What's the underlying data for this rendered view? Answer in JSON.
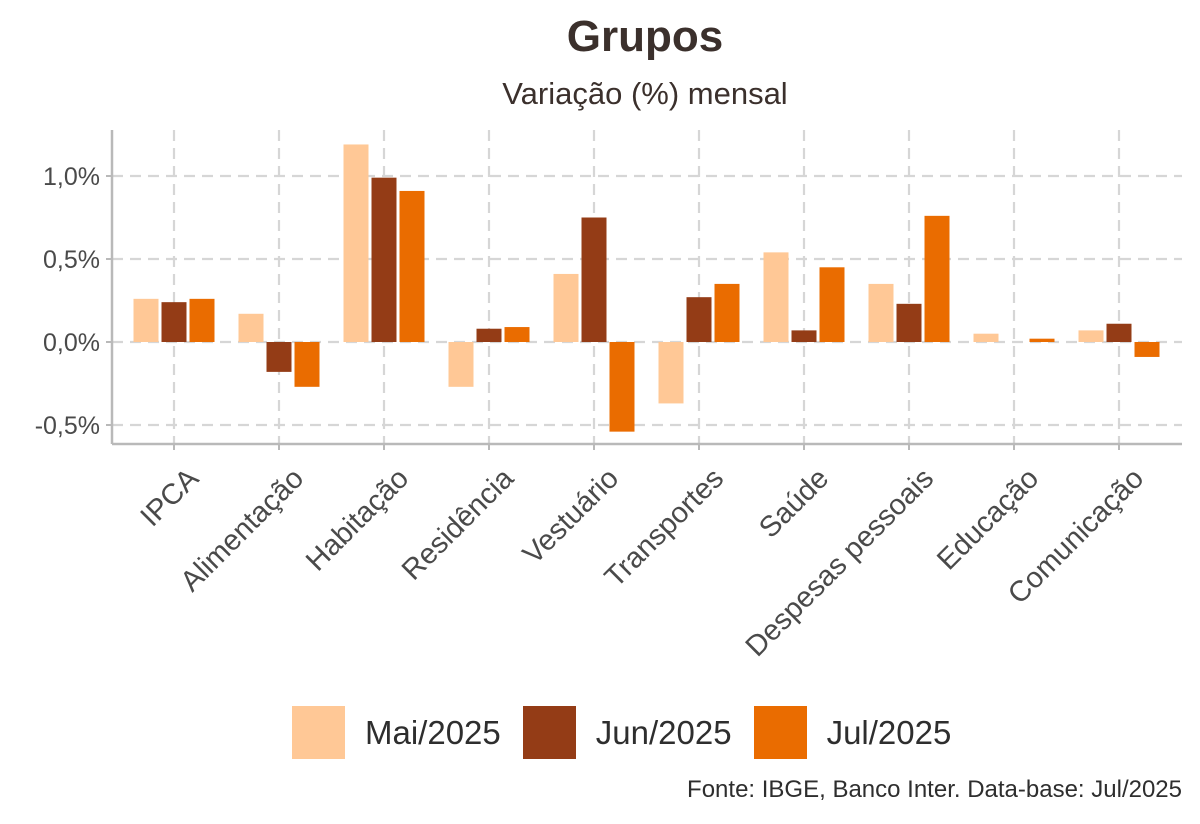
{
  "title": "Grupos",
  "subtitle": "Variação (%) mensal",
  "source": "Fonte: IBGE, Banco Inter. Data-base: Jul/2025",
  "chart_data": {
    "type": "bar",
    "title": "Grupos",
    "subtitle": "Variação (%) mensal",
    "xlabel": "",
    "ylabel": "",
    "categories": [
      "IPCA",
      "Alimentação",
      "Habitação",
      "Residência",
      "Vestuário",
      "Transportes",
      "Saúde",
      "Despesas pessoais",
      "Educação",
      "Comunicação"
    ],
    "series": [
      {
        "name": "Mai/2025",
        "color": "#ffc896",
        "values": [
          0.26,
          0.17,
          1.19,
          -0.27,
          0.41,
          -0.37,
          0.54,
          0.35,
          0.05,
          0.07
        ]
      },
      {
        "name": "Jun/2025",
        "color": "#943c16",
        "values": [
          0.24,
          -0.18,
          0.99,
          0.08,
          0.75,
          0.27,
          0.07,
          0.23,
          0.0,
          0.11
        ]
      },
      {
        "name": "Jul/2025",
        "color": "#ea6c00",
        "values": [
          0.26,
          -0.27,
          0.91,
          0.09,
          -0.54,
          0.35,
          0.45,
          0.76,
          0.02,
          -0.09
        ]
      }
    ],
    "ylim": [
      -0.6,
      1.27
    ],
    "yticks": [
      -0.5,
      0.0,
      0.5,
      1.0
    ],
    "ytick_labels": [
      "-0,5%",
      "0,0%",
      "0,5%",
      "1,0%"
    ],
    "grid": true,
    "legend_position": "bottom"
  }
}
